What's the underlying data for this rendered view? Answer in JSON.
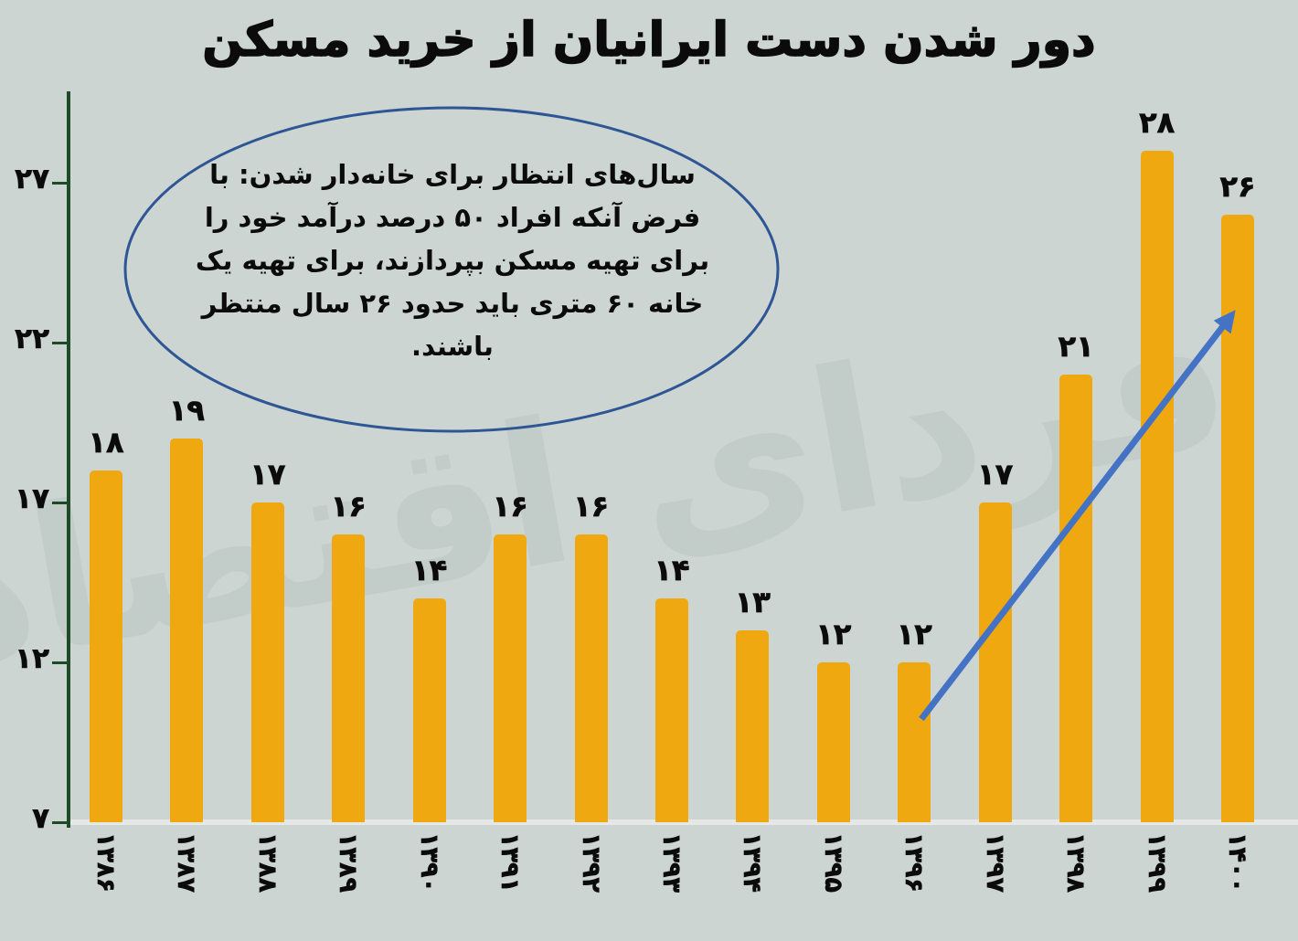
{
  "page": {
    "title": "دور شدن دست ایرانیان از خرید مسکن",
    "watermark": "فردای اقتصاد"
  },
  "annotation": {
    "text": "سال‌های انتظار برای خانه‌دار شدن: با فرض آنکه افراد ۵۰ درصد درآمد خود را برای تهیه مسکن بپردازند، برای تهیه یک خانه ۶۰ متری باید حدود ۲۶ سال منتظر باشند."
  },
  "chart_data": {
    "type": "bar",
    "title": "دور شدن دست ایرانیان از خرید مسکن",
    "categories": [
      "۱۳۸۶",
      "۱۳۸۷",
      "۱۳۸۸",
      "۱۳۸۹",
      "۱۳۹۰",
      "۱۳۹۱",
      "۱۳۹۲",
      "۱۳۹۳",
      "۱۳۹۴",
      "۱۳۹۵",
      "۱۳۹۶",
      "۱۳۹۷",
      "۱۳۹۸",
      "۱۳۹۹",
      "۱۴۰۰"
    ],
    "categories_western": [
      1386,
      1387,
      1388,
      1389,
      1390,
      1391,
      1392,
      1393,
      1394,
      1395,
      1396,
      1397,
      1398,
      1399,
      1400
    ],
    "values": [
      18,
      19,
      17,
      16,
      14,
      16,
      16,
      14,
      13,
      12,
      12,
      17,
      21,
      28,
      26
    ],
    "value_labels": [
      "۱۸",
      "۱۹",
      "۱۷",
      "۱۶",
      "۱۴",
      "۱۶",
      "۱۶",
      "۱۴",
      "۱۳",
      "۱۲",
      "۱۲",
      "۱۷",
      "۲۱",
      "۲۸",
      "۲۶"
    ],
    "y_ticks": {
      "labels": [
        "۲۷",
        "۲۲",
        "۱۷",
        "۱۲",
        "۷"
      ],
      "values": [
        27,
        22,
        17,
        12,
        7
      ]
    },
    "ylim": [
      7,
      29.9
    ],
    "xlabel": "",
    "ylabel": "",
    "grid": false,
    "legend": false,
    "trend_arrow": {
      "from_category": "۱۳۹۶",
      "to_category": "۱۴۰۰"
    },
    "style": {
      "background": "#cdd5d2",
      "bar_color": "#efa80f",
      "axis_color": "#1e4a28",
      "baseline_color": "#e5e8e6",
      "arrow_color": "#4472c4",
      "ellipse_color": "#2e5694",
      "watermark_color": "#c0cbc6",
      "text_color": "#0b0b0b"
    }
  }
}
